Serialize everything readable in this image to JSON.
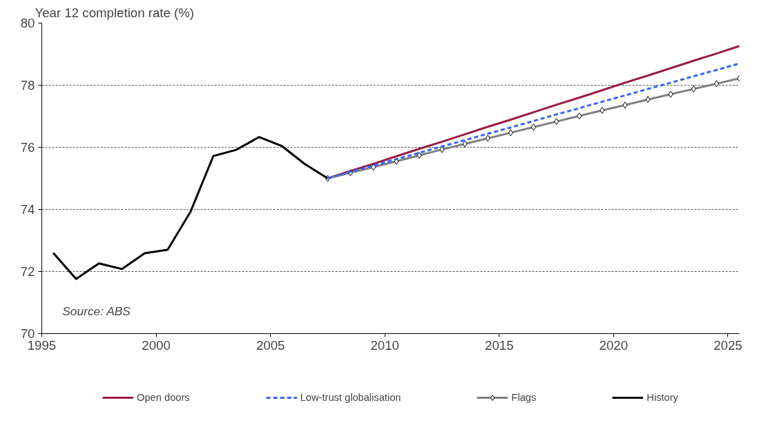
{
  "chart_data": {
    "type": "line",
    "ylabel": "Year 12 completion rate (%)",
    "x": [
      2007.5,
      2008.5,
      2009.5,
      2010.5,
      2011.5,
      2012.5,
      2013.5,
      2014.5,
      2015.5,
      2016.5,
      2017.5,
      2018.5,
      2019.5,
      2020.5,
      2021.5,
      2022.5,
      2023.5,
      2024.5,
      2025.5
    ],
    "series": [
      {
        "name": "Open doors",
        "color": "#9b1b42",
        "line_style": "solid",
        "marker": "none",
        "values": [
          75.0,
          75.24,
          75.47,
          75.71,
          75.95,
          76.18,
          76.42,
          76.66,
          76.89,
          77.13,
          77.37,
          77.6,
          77.84,
          78.08,
          78.31,
          78.55,
          78.79,
          79.02,
          79.26
        ]
      },
      {
        "name": "Low-trust globalisation",
        "color": "#3366ff",
        "line_style": "dashed",
        "marker": "none",
        "values": [
          75.0,
          75.21,
          75.41,
          75.62,
          75.82,
          76.03,
          76.23,
          76.44,
          76.64,
          76.85,
          77.06,
          77.26,
          77.47,
          77.67,
          77.88,
          78.08,
          78.29,
          78.49,
          78.7
        ]
      },
      {
        "name": "Flags",
        "color": "#808080",
        "line_style": "solid",
        "marker": "diamond",
        "values": [
          75.0,
          75.18,
          75.36,
          75.55,
          75.74,
          75.93,
          76.11,
          76.29,
          76.47,
          76.65,
          76.83,
          77.01,
          77.19,
          77.36,
          77.54,
          77.71,
          77.88,
          78.05,
          78.22
        ]
      },
      {
        "name": "History",
        "color": "#000000",
        "line_style": "solid",
        "marker": "none",
        "x": [
          1995.5,
          1996.5,
          1997.5,
          1998.5,
          1999.5,
          2000.5,
          2001.5,
          2002.5,
          2003.5,
          2004.5,
          2005.5,
          2006.5,
          2007.5
        ],
        "values": [
          72.6,
          71.76,
          72.26,
          72.08,
          72.59,
          72.7,
          73.92,
          75.72,
          75.92,
          76.33,
          76.04,
          75.46,
          75.0
        ]
      }
    ],
    "xlim": [
      1995,
      2025.5
    ],
    "xticks": [
      1995,
      2000,
      2005,
      2010,
      2015,
      2020,
      2025
    ],
    "ylim": [
      70,
      80
    ],
    "yticks": [
      70,
      72,
      74,
      76,
      78,
      80
    ],
    "grid": "y",
    "legend": "bottom",
    "annotations": [
      "Source: ABS"
    ]
  }
}
